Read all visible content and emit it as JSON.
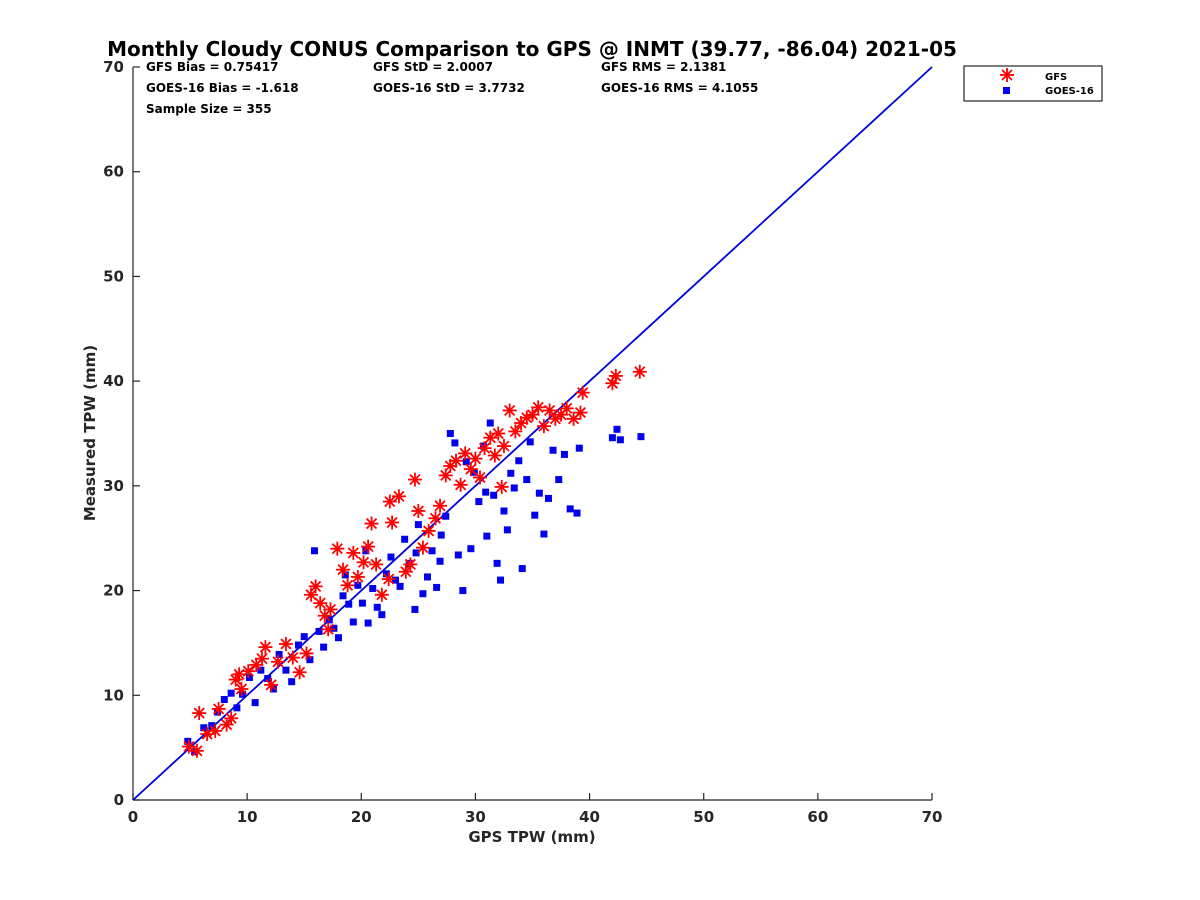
{
  "chart_data": {
    "type": "scatter",
    "title": "Monthly Cloudy CONUS Comparison to GPS @ INMT (39.77, -86.04) 2021-05",
    "xlabel": "GPS TPW (mm)",
    "ylabel": "Measured TPW (mm)",
    "xlim": [
      0,
      70
    ],
    "ylim": [
      0,
      70
    ],
    "xticks": [
      "0",
      "10",
      "20",
      "30",
      "40",
      "50",
      "60",
      "70"
    ],
    "yticks": [
      "0",
      "10",
      "20",
      "30",
      "40",
      "50",
      "60",
      "70"
    ],
    "grid": false,
    "legend_position": "outside top-right",
    "stats": {
      "gfs_bias": "GFS Bias = 0.75417",
      "goes_bias": "GOES-16 Bias = -1.618",
      "sample_size": "Sample Size = 355",
      "gfs_std": "GFS StD = 2.0007",
      "goes_std": "GOES-16 StD = 3.7732",
      "gfs_rms": "GFS RMS = 2.1381",
      "goes_rms": "GOES-16 RMS = 4.1055"
    },
    "reference_line": {
      "x": [
        0,
        70
      ],
      "y": [
        0,
        70
      ],
      "color": "#0000dd"
    },
    "series": [
      {
        "name": "GFS",
        "marker": "asterisk",
        "color": "#ff0000",
        "points": [
          [
            4.9,
            5.1
          ],
          [
            5.6,
            4.7
          ],
          [
            5.8,
            8.3
          ],
          [
            6.5,
            6.3
          ],
          [
            7.2,
            6.6
          ],
          [
            7.5,
            8.7
          ],
          [
            8.2,
            7.2
          ],
          [
            8.6,
            7.8
          ],
          [
            9.0,
            11.5
          ],
          [
            9.3,
            12.0
          ],
          [
            9.5,
            10.6
          ],
          [
            10.1,
            12.3
          ],
          [
            10.8,
            12.9
          ],
          [
            11.3,
            13.5
          ],
          [
            11.6,
            14.6
          ],
          [
            12.1,
            11.0
          ],
          [
            12.7,
            13.2
          ],
          [
            13.4,
            14.9
          ],
          [
            14.0,
            13.6
          ],
          [
            14.6,
            12.2
          ],
          [
            15.2,
            14.0
          ],
          [
            15.6,
            19.6
          ],
          [
            16.0,
            20.4
          ],
          [
            16.4,
            18.8
          ],
          [
            16.8,
            17.6
          ],
          [
            17.1,
            16.3
          ],
          [
            17.3,
            18.2
          ],
          [
            17.9,
            24.0
          ],
          [
            18.4,
            22.0
          ],
          [
            18.8,
            20.5
          ],
          [
            19.3,
            23.6
          ],
          [
            19.7,
            21.3
          ],
          [
            20.2,
            22.7
          ],
          [
            20.6,
            24.2
          ],
          [
            20.9,
            26.4
          ],
          [
            21.3,
            22.5
          ],
          [
            21.8,
            19.6
          ],
          [
            22.4,
            21.1
          ],
          [
            22.5,
            28.5
          ],
          [
            22.7,
            26.5
          ],
          [
            23.3,
            29.0
          ],
          [
            23.9,
            21.8
          ],
          [
            24.3,
            22.5
          ],
          [
            24.7,
            30.6
          ],
          [
            25.0,
            27.6
          ],
          [
            25.4,
            24.1
          ],
          [
            25.9,
            25.7
          ],
          [
            26.5,
            26.9
          ],
          [
            26.9,
            28.1
          ],
          [
            27.4,
            31.0
          ],
          [
            27.8,
            31.9
          ],
          [
            28.3,
            32.4
          ],
          [
            28.7,
            30.1
          ],
          [
            29.1,
            33.1
          ],
          [
            29.6,
            31.6
          ],
          [
            30.0,
            32.6
          ],
          [
            30.4,
            30.8
          ],
          [
            30.8,
            33.6
          ],
          [
            31.3,
            34.6
          ],
          [
            31.7,
            32.9
          ],
          [
            32.0,
            35.0
          ],
          [
            32.5,
            33.8
          ],
          [
            33.0,
            37.2
          ],
          [
            33.5,
            35.2
          ],
          [
            34.0,
            36.0
          ],
          [
            34.5,
            36.5
          ],
          [
            35.0,
            36.8
          ],
          [
            35.5,
            37.5
          ],
          [
            36.0,
            35.7
          ],
          [
            36.5,
            37.2
          ],
          [
            37.0,
            36.4
          ],
          [
            37.5,
            36.8
          ],
          [
            38.0,
            37.4
          ],
          [
            38.6,
            36.4
          ],
          [
            39.2,
            37.0
          ],
          [
            39.4,
            38.9
          ],
          [
            42.0,
            39.8
          ],
          [
            42.3,
            40.5
          ],
          [
            44.4,
            40.9
          ],
          [
            32.3,
            29.9
          ]
        ]
      },
      {
        "name": "GOES-16",
        "marker": "square",
        "color": "#0000ee",
        "points": [
          [
            4.8,
            5.6
          ],
          [
            5.4,
            4.6
          ],
          [
            6.2,
            6.9
          ],
          [
            6.9,
            7.1
          ],
          [
            7.4,
            8.4
          ],
          [
            8.0,
            9.6
          ],
          [
            8.6,
            10.2
          ],
          [
            9.1,
            8.8
          ],
          [
            9.6,
            10.1
          ],
          [
            10.2,
            11.7
          ],
          [
            10.7,
            9.3
          ],
          [
            11.2,
            12.4
          ],
          [
            11.8,
            11.6
          ],
          [
            12.3,
            10.6
          ],
          [
            12.8,
            13.9
          ],
          [
            13.4,
            12.4
          ],
          [
            13.9,
            11.3
          ],
          [
            14.5,
            14.8
          ],
          [
            15.0,
            15.6
          ],
          [
            15.5,
            13.4
          ],
          [
            15.9,
            23.8
          ],
          [
            16.3,
            16.1
          ],
          [
            16.7,
            14.6
          ],
          [
            17.2,
            17.2
          ],
          [
            17.6,
            16.4
          ],
          [
            18.0,
            15.5
          ],
          [
            18.4,
            19.5
          ],
          [
            18.9,
            18.7
          ],
          [
            19.3,
            17.0
          ],
          [
            19.7,
            20.5
          ],
          [
            20.1,
            18.8
          ],
          [
            20.6,
            16.9
          ],
          [
            21.0,
            20.2
          ],
          [
            21.4,
            18.4
          ],
          [
            21.8,
            17.7
          ],
          [
            22.2,
            21.6
          ],
          [
            22.6,
            23.2
          ],
          [
            23.0,
            21.0
          ],
          [
            23.4,
            20.4
          ],
          [
            23.8,
            24.9
          ],
          [
            24.2,
            22.6
          ],
          [
            24.7,
            18.2
          ],
          [
            25.0,
            26.3
          ],
          [
            25.4,
            19.7
          ],
          [
            25.8,
            21.3
          ],
          [
            26.2,
            23.8
          ],
          [
            26.6,
            20.3
          ],
          [
            27.0,
            25.3
          ],
          [
            27.4,
            27.1
          ],
          [
            27.8,
            35.0
          ],
          [
            28.2,
            34.1
          ],
          [
            28.5,
            23.4
          ],
          [
            28.9,
            20.0
          ],
          [
            29.2,
            32.3
          ],
          [
            29.6,
            24.0
          ],
          [
            29.9,
            31.3
          ],
          [
            30.3,
            28.5
          ],
          [
            30.7,
            33.8
          ],
          [
            31.0,
            25.2
          ],
          [
            31.3,
            36.0
          ],
          [
            31.6,
            29.1
          ],
          [
            31.9,
            22.6
          ],
          [
            32.2,
            21.0
          ],
          [
            32.5,
            27.6
          ],
          [
            32.8,
            25.8
          ],
          [
            33.1,
            31.2
          ],
          [
            33.4,
            29.8
          ],
          [
            33.8,
            32.4
          ],
          [
            34.1,
            22.1
          ],
          [
            34.5,
            30.6
          ],
          [
            34.8,
            34.2
          ],
          [
            35.2,
            27.2
          ],
          [
            35.6,
            29.3
          ],
          [
            36.0,
            25.4
          ],
          [
            36.4,
            28.8
          ],
          [
            36.8,
            33.4
          ],
          [
            37.3,
            30.6
          ],
          [
            37.8,
            33.0
          ],
          [
            38.3,
            27.8
          ],
          [
            38.9,
            27.4
          ],
          [
            39.1,
            33.6
          ],
          [
            42.0,
            34.6
          ],
          [
            42.4,
            35.4
          ],
          [
            42.7,
            34.4
          ],
          [
            44.5,
            34.7
          ],
          [
            24.8,
            23.6
          ],
          [
            26.9,
            22.8
          ],
          [
            20.4,
            23.8
          ],
          [
            18.6,
            21.5
          ],
          [
            30.9,
            29.4
          ]
        ]
      }
    ]
  }
}
